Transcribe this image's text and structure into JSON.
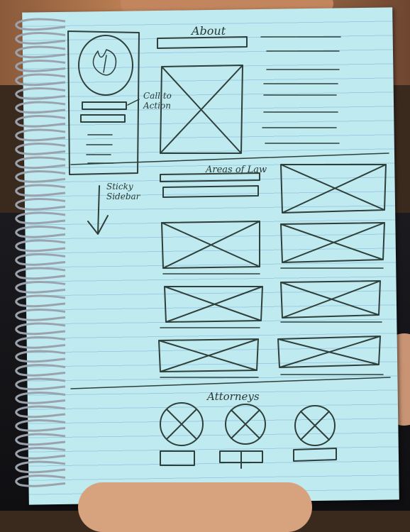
{
  "sketch": {
    "about_heading": "About",
    "call_to_action_label": "Call to Action",
    "sticky_sidebar_label": "Sticky Sidebar",
    "areas_heading": "Areas of Law",
    "attorneys_heading": "Attorneys"
  },
  "colors": {
    "paper": "#bfeaf0",
    "ink": "#2f3f3a",
    "rule_lines": "#5a96c8",
    "spiral": "#9aa3ad"
  }
}
